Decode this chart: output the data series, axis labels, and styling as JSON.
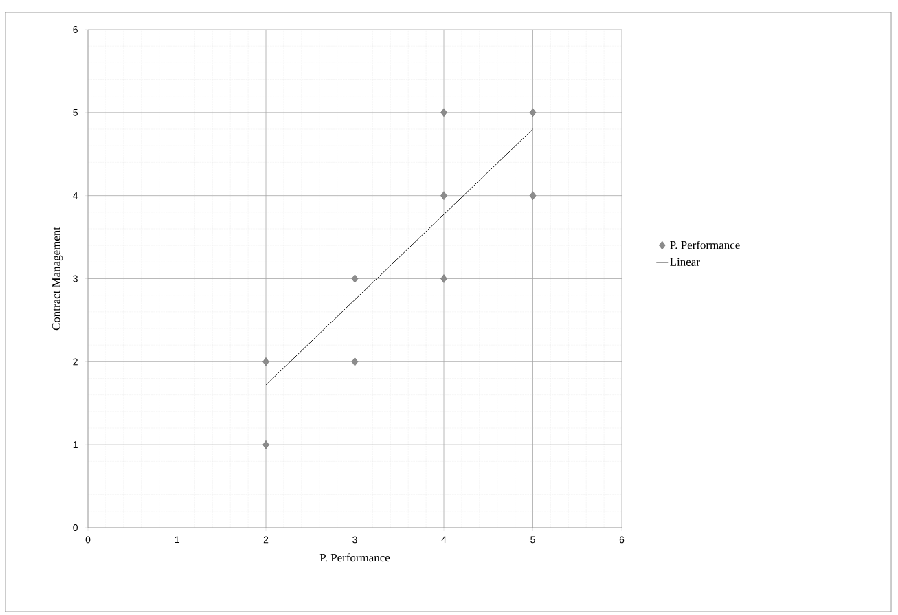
{
  "chart_data": {
    "type": "scatter",
    "xlabel": "P. Performance",
    "ylabel": "Contract Management",
    "xlim": [
      0,
      6
    ],
    "ylim": [
      0,
      6
    ],
    "xticks": [
      0,
      1,
      2,
      3,
      4,
      5,
      6
    ],
    "yticks": [
      0,
      1,
      2,
      3,
      4,
      5,
      6
    ],
    "grid": true,
    "legend": "right",
    "marker": "diamond",
    "x": [
      2,
      2,
      3,
      3,
      4,
      4,
      4,
      5,
      5
    ],
    "series": [
      {
        "name": "P. Performance",
        "color": "#8c8c8c",
        "values": [
          2,
          1,
          3,
          2,
          5,
          4,
          3,
          5,
          4
        ]
      },
      {
        "name": "Linear",
        "type": "line",
        "color": "#000000",
        "x": [
          2,
          5
        ],
        "values": [
          1.72,
          4.8
        ],
        "marker": "none",
        "line_style": "solid"
      }
    ]
  }
}
